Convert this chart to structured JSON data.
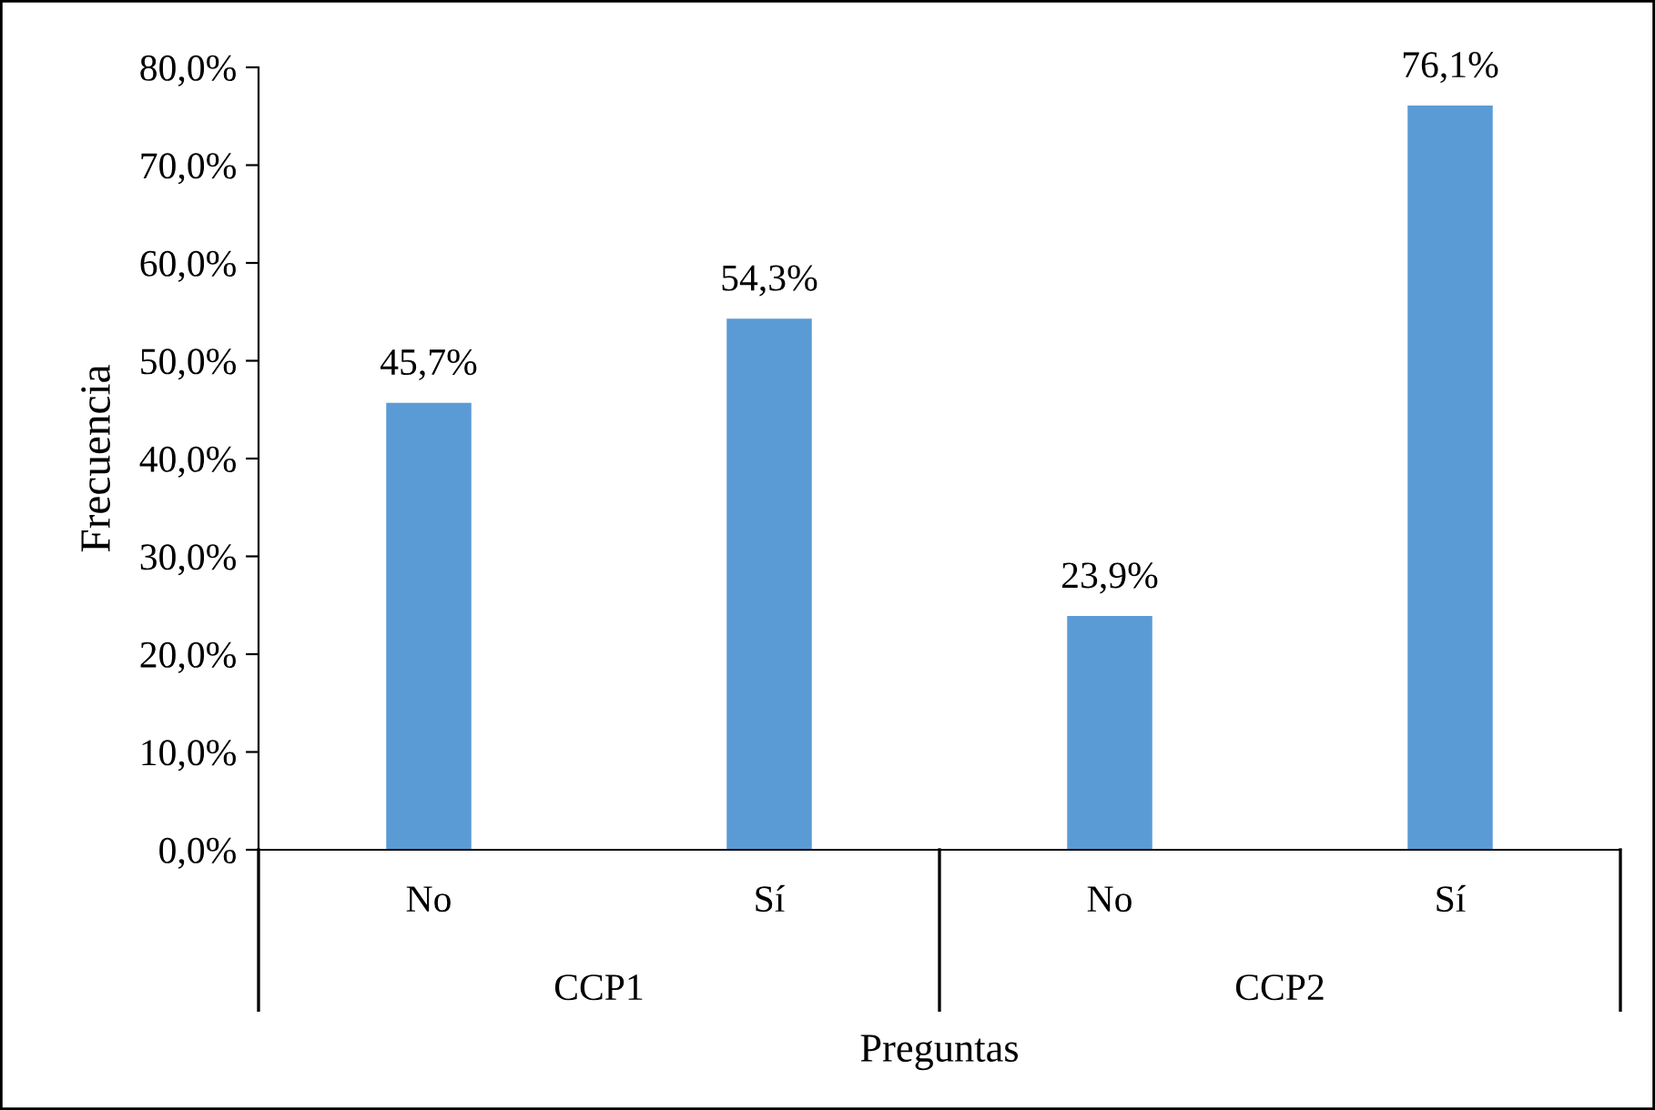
{
  "chart_data": {
    "type": "bar",
    "xlabel": "Preguntas",
    "ylabel": "Frecuencia",
    "categories": [
      "No",
      "Sí",
      "No",
      "Sí"
    ],
    "values": [
      45.7,
      54.3,
      23.9,
      76.1
    ],
    "value_labels": [
      "45,7%",
      "54,3%",
      "23,9%",
      "76,1%"
    ],
    "color": "#5b9bd5",
    "ylim": [
      0,
      80
    ],
    "yticks": [
      {
        "value": 0,
        "label": "0,0%"
      },
      {
        "value": 10,
        "label": "10,0%"
      },
      {
        "value": 20,
        "label": "20,0%"
      },
      {
        "value": 30,
        "label": "30,0%"
      },
      {
        "value": 40,
        "label": "40,0%"
      },
      {
        "value": 50,
        "label": "50,0%"
      },
      {
        "value": 60,
        "label": "60,0%"
      },
      {
        "value": 70,
        "label": "70,0%"
      },
      {
        "value": 80,
        "label": "80,0%"
      }
    ],
    "annotations": [
      "CCP1",
      "CCP2"
    ],
    "grid": false,
    "legend": false
  }
}
